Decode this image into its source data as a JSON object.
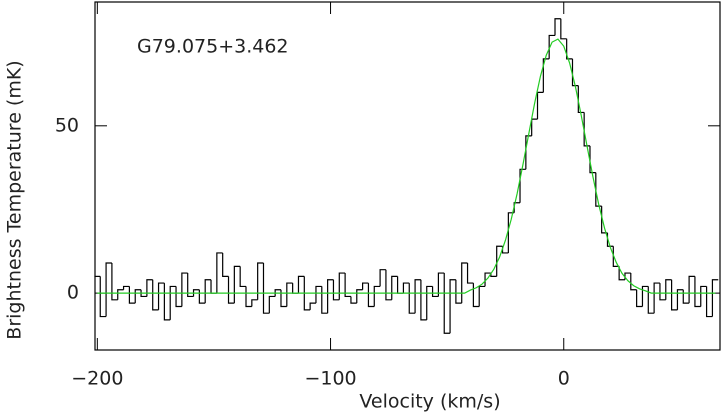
{
  "chart_data": {
    "type": "spectrum",
    "annotation": "G79.075+3.462",
    "xlabel": "Velocity (km/s)",
    "ylabel": "Brightness Temperature (mK)",
    "xlim": [
      -201,
      67
    ],
    "ylim": [
      -17,
      87
    ],
    "xticks": [
      {
        "value": -200,
        "label": "−200"
      },
      {
        "value": -100,
        "label": "−100"
      },
      0
    ],
    "yticks": [
      0,
      50
    ],
    "x": [
      -200,
      -197.5,
      -195,
      -192.5,
      -190,
      -187.5,
      -185,
      -182.5,
      -180,
      -177.5,
      -175,
      -172.5,
      -170,
      -167.5,
      -165,
      -162.5,
      -160,
      -157.5,
      -155,
      -152.5,
      -150,
      -147.5,
      -145,
      -142.5,
      -140,
      -137.5,
      -135,
      -132.5,
      -130,
      -127.5,
      -125,
      -122.5,
      -120,
      -117.5,
      -115,
      -112.5,
      -110,
      -107.5,
      -105,
      -102.5,
      -100,
      -97.5,
      -95,
      -92.5,
      -90,
      -87.5,
      -85,
      -82.5,
      -80,
      -77.5,
      -75,
      -72.5,
      -70,
      -67.5,
      -65,
      -62.5,
      -60,
      -57.5,
      -55,
      -52.5,
      -50,
      -47.5,
      -45,
      -42.5,
      -40,
      -37.5,
      -35,
      -32.5,
      -30,
      -27.5,
      -25,
      -22.5,
      -20,
      -17.5,
      -15,
      -12.5,
      -10,
      -7.5,
      -5,
      -2.5,
      0,
      2.5,
      5,
      7.5,
      10,
      12.5,
      15,
      17.5,
      20,
      22.5,
      25,
      27.5,
      30,
      32.5,
      35,
      37.5,
      40,
      42.5,
      45,
      47.5,
      50,
      52.5,
      55,
      57.5,
      60,
      62.5,
      65
    ],
    "series": [
      {
        "color": "#000000",
        "style": "step",
        "values": [
          5,
          -7,
          9,
          -2,
          1,
          2,
          -3,
          1,
          -1,
          4,
          -5,
          3,
          -8,
          2,
          -4,
          6,
          -1,
          1,
          -3,
          4,
          0,
          12,
          5,
          -3,
          8,
          2,
          -4,
          -2,
          9,
          -6,
          -1,
          1,
          -4,
          3,
          0,
          5,
          -5,
          -3,
          2,
          -6,
          4,
          -2,
          6,
          -1,
          -3,
          1,
          3,
          -4,
          2,
          7,
          -2,
          5,
          0,
          3,
          -6,
          4,
          -8,
          2,
          -1,
          6,
          -12,
          4,
          -3,
          9,
          3,
          -4,
          2,
          6,
          5,
          14,
          12,
          24,
          27,
          37,
          47,
          52,
          60,
          70,
          77,
          82,
          76,
          70,
          62,
          54,
          44,
          36,
          26,
          18,
          14,
          8,
          4,
          6,
          1,
          -4,
          2,
          -6,
          3,
          -2,
          4,
          -5,
          1,
          -3,
          5,
          -4,
          2,
          -7,
          4
        ]
      },
      {
        "color": "#22cc22",
        "style": "line",
        "values": [
          0,
          0,
          0,
          0,
          0,
          0,
          0,
          0,
          0,
          0,
          0,
          0,
          0,
          0,
          0,
          0,
          0,
          0,
          0,
          0,
          0,
          0,
          0,
          0,
          0,
          0,
          0,
          0,
          0,
          0,
          0,
          0,
          0,
          0,
          0,
          0,
          0,
          0,
          0,
          0,
          0,
          0,
          0,
          0,
          0,
          0,
          0,
          0,
          0,
          0,
          0,
          0,
          0,
          0,
          0,
          0,
          0,
          0,
          0,
          0,
          0,
          0,
          0,
          0,
          0.9,
          1.6,
          2.7,
          4.5,
          7.1,
          10.8,
          15.8,
          22.1,
          29.7,
          38.4,
          47.6,
          56.7,
          64.8,
          71.1,
          75.0,
          75.9,
          73.8,
          68.8,
          61.7,
          53.1,
          43.9,
          34.8,
          26.5,
          19.4,
          13.6,
          9.2,
          5.9,
          3.7,
          2.2,
          1.3,
          0.7,
          0,
          0,
          0,
          0,
          0,
          0,
          0,
          0,
          0,
          0,
          0,
          0
        ]
      }
    ]
  }
}
